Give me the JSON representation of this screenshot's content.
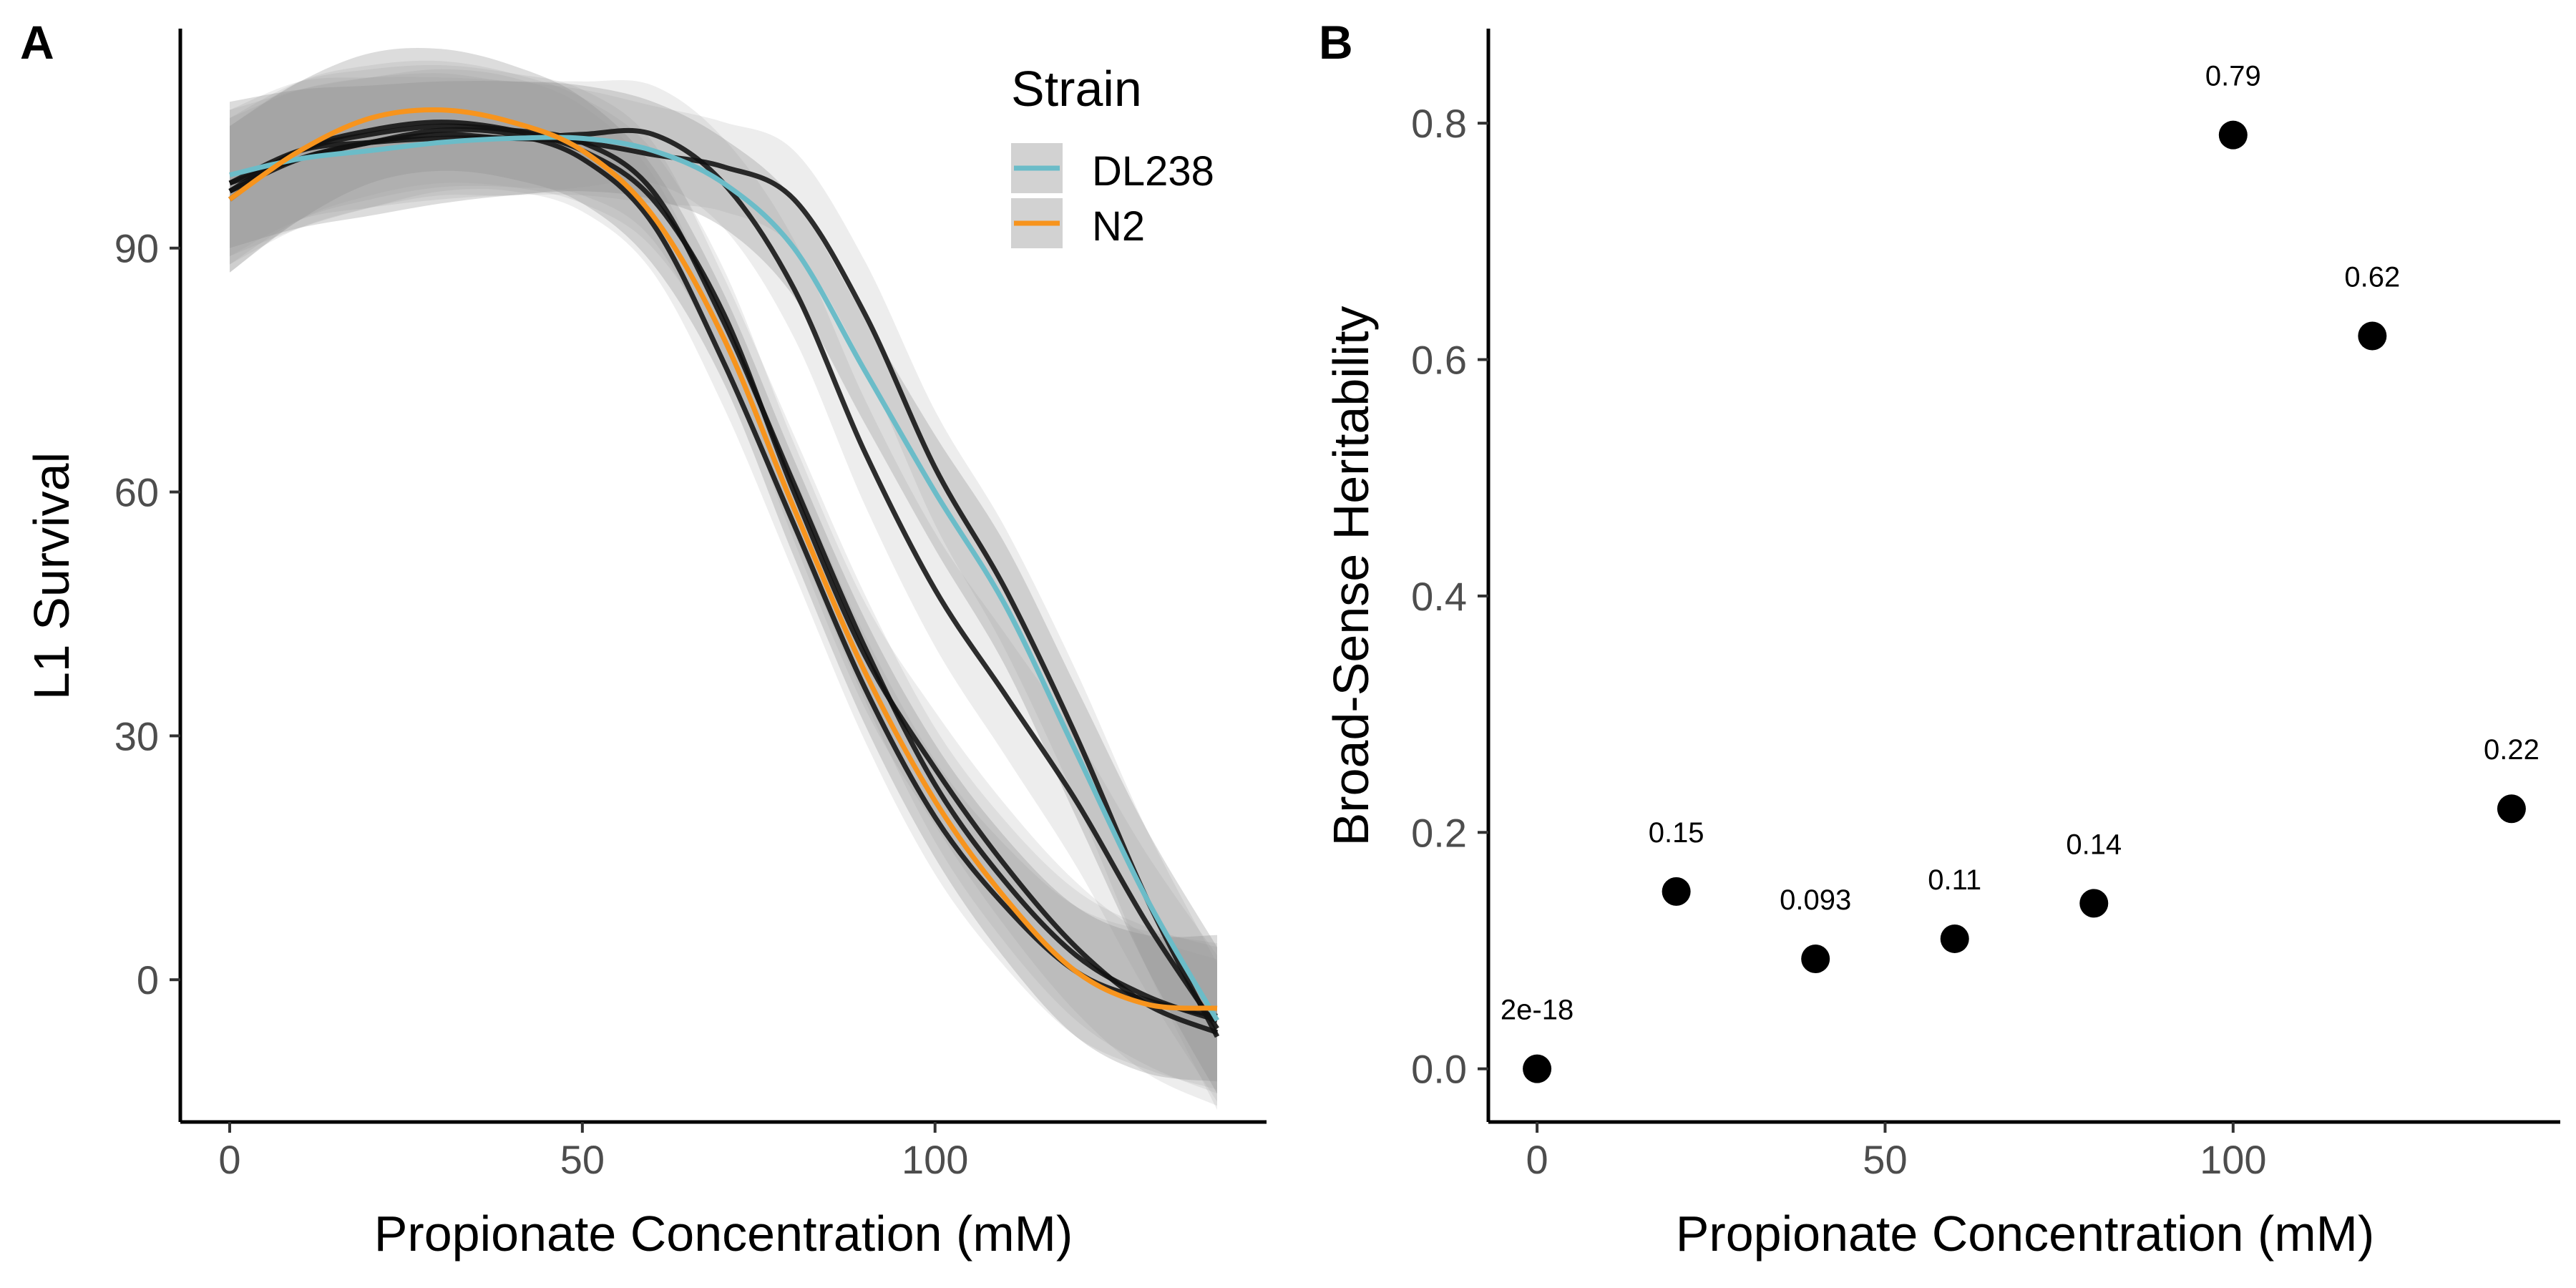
{
  "chart_data": [
    {
      "panel_label": "A",
      "type": "line",
      "title": "",
      "xlabel": "Propionate Concentration (mM)",
      "ylabel": "L1 Survival",
      "xlim": [
        -7,
        147
      ],
      "ylim": [
        -17.5,
        117
      ],
      "x_ticks": [
        0,
        50,
        100
      ],
      "y_ticks": [
        0,
        30,
        60,
        90
      ],
      "x_tick_labels": [
        "0",
        "50",
        "100"
      ],
      "y_tick_labels": [
        "0",
        "30",
        "60",
        "90"
      ],
      "grid": false,
      "legend": {
        "title": "Strain",
        "position": "top-right",
        "entries": [
          {
            "label": "DL238",
            "color": "#6bbcc8"
          },
          {
            "label": "N2",
            "color": "#f7941d"
          }
        ]
      },
      "series": [
        {
          "name": "DL238",
          "color": "#6bbcc8",
          "x": [
            0,
            10,
            20,
            30,
            40,
            50,
            60,
            70,
            80,
            90,
            100,
            110,
            120,
            130,
            140
          ],
          "y": [
            99,
            101,
            102,
            103,
            103.5,
            103.5,
            102,
            98,
            90,
            75,
            60,
            46,
            28,
            10,
            -5
          ]
        },
        {
          "name": "N2",
          "color": "#f7941d",
          "x": [
            0,
            10,
            20,
            30,
            40,
            50,
            60,
            70,
            80,
            90,
            100,
            110,
            120,
            130,
            140
          ],
          "y": [
            96,
            102,
            106,
            107,
            105.5,
            102,
            94,
            79,
            58,
            38,
            22,
            10,
            1,
            -3,
            -3.5
          ]
        }
      ],
      "replicate_series": [
        {
          "color": "#111111",
          "x": [
            0,
            10,
            20,
            30,
            40,
            50,
            60,
            70,
            80,
            90,
            100,
            110,
            120,
            130,
            140
          ],
          "y": [
            98,
            102,
            103,
            103.5,
            103.5,
            103,
            101.5,
            100,
            96,
            82,
            63,
            48,
            30,
            10,
            -7
          ]
        },
        {
          "color": "#111111",
          "x": [
            0,
            10,
            20,
            30,
            40,
            50,
            60,
            70,
            80,
            90,
            100,
            110,
            120,
            130,
            140
          ],
          "y": [
            97,
            101,
            103,
            104,
            103.5,
            104,
            104,
            98,
            85,
            65,
            48,
            35,
            22,
            7,
            -6
          ]
        },
        {
          "color": "#111111",
          "x": [
            0,
            10,
            20,
            30,
            40,
            50,
            60,
            70,
            80,
            90,
            100,
            110,
            120,
            130,
            140
          ],
          "y": [
            96,
            102,
            104.5,
            105.5,
            104.5,
            102,
            96,
            82,
            60,
            40,
            26,
            14,
            4,
            -3,
            -6.5
          ]
        },
        {
          "color": "#111111",
          "x": [
            0,
            10,
            20,
            30,
            40,
            50,
            60,
            70,
            80,
            90,
            100,
            110,
            120,
            130,
            140
          ],
          "y": [
            98,
            101,
            103,
            104.5,
            104,
            101,
            93,
            76,
            56,
            36,
            20,
            9,
            1,
            -2.5,
            -4.5
          ]
        },
        {
          "color": "#111111",
          "x": [
            0,
            10,
            20,
            30,
            40,
            50,
            60,
            70,
            80,
            90,
            100,
            110,
            120,
            130,
            140
          ],
          "y": [
            97,
            102,
            104,
            105,
            104.5,
            103,
            97,
            81,
            61,
            41,
            24,
            12,
            3,
            -2,
            -5
          ]
        }
      ]
    },
    {
      "panel_label": "B",
      "type": "scatter",
      "title": "",
      "xlabel": "Propionate Concentration (mM)",
      "ylabel": "Broad-Sense Heritability",
      "xlim": [
        -7,
        147
      ],
      "ylim": [
        -0.045,
        0.88
      ],
      "x_ticks": [
        0,
        50,
        100
      ],
      "y_ticks": [
        0.0,
        0.2,
        0.4,
        0.6,
        0.8
      ],
      "x_tick_labels": [
        "0",
        "50",
        "100"
      ],
      "y_tick_labels": [
        "0.0",
        "0.2",
        "0.4",
        "0.6",
        "0.8"
      ],
      "grid": false,
      "points": [
        {
          "x": 0,
          "y": 0.0,
          "label": "2e-18"
        },
        {
          "x": 20,
          "y": 0.15,
          "label": "0.15"
        },
        {
          "x": 40,
          "y": 0.093,
          "label": "0.093"
        },
        {
          "x": 60,
          "y": 0.11,
          "label": "0.11"
        },
        {
          "x": 80,
          "y": 0.14,
          "label": "0.14"
        },
        {
          "x": 100,
          "y": 0.79,
          "label": "0.79"
        },
        {
          "x": 120,
          "y": 0.62,
          "label": "0.62"
        },
        {
          "x": 140,
          "y": 0.22,
          "label": "0.22"
        }
      ]
    }
  ]
}
